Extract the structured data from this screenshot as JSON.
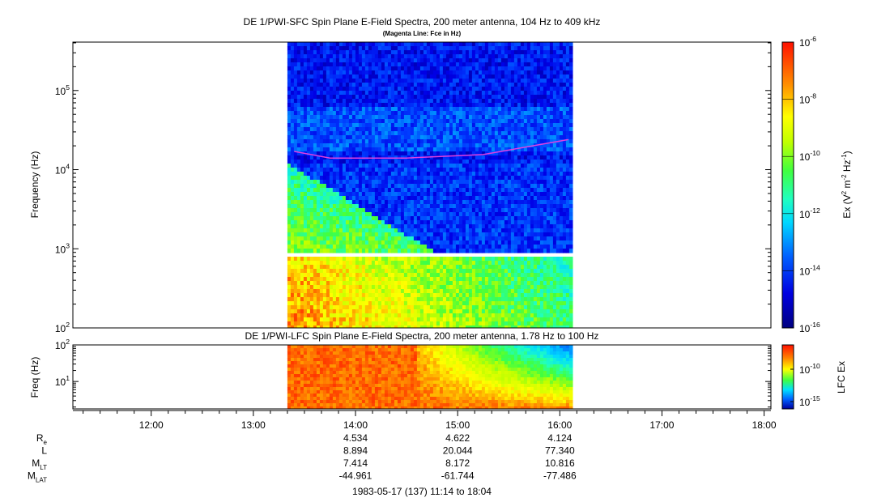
{
  "chart_data": [
    {
      "type": "heatmap",
      "title": "DE 1/PWI-SFC  Spin Plane E-Field Spectra, 200 meter antenna, 104 Hz to 409 kHz",
      "subtitle": "(Magenta Line: Fce in Hz)",
      "ylabel": "Frequency (Hz)",
      "yscale": "log",
      "ylim": [
        100,
        409000
      ],
      "y_ticks": [
        {
          "value": 100,
          "base": "10",
          "exp": "2"
        },
        {
          "value": 1000,
          "base": "10",
          "exp": "3"
        },
        {
          "value": 10000,
          "base": "10",
          "exp": "4"
        },
        {
          "value": 100000,
          "base": "10",
          "exp": "5"
        }
      ],
      "data_time_range": [
        "13:20",
        "16:07"
      ],
      "colorbar": {
        "label_main": "Ex (V",
        "label_sup1": "2",
        "label_mid": " m",
        "label_sup2": "-2",
        "label_mid2": " Hz",
        "label_sup3": "-1",
        "label_end": ")",
        "scale": "log",
        "range": [
          1e-16,
          1e-06
        ],
        "ticks": [
          {
            "base": "10",
            "exp": "-6"
          },
          {
            "base": "10",
            "exp": "-8"
          },
          {
            "base": "10",
            "exp": "-10"
          },
          {
            "base": "10",
            "exp": "-12"
          },
          {
            "base": "10",
            "exp": "-14"
          },
          {
            "base": "10",
            "exp": "-16"
          }
        ]
      },
      "fce_line": {
        "color": "#e040e0",
        "points": [
          [
            "13:24",
            17000
          ],
          [
            "13:45",
            14000
          ],
          [
            "14:30",
            14000
          ],
          [
            "15:15",
            15500
          ],
          [
            "16:05",
            24000
          ]
        ]
      }
    },
    {
      "type": "heatmap",
      "title": "DE 1/PWI-LFC  Spin Plane E-Field Spectra, 200 meter antenna, 1.78 Hz to 100 Hz",
      "ylabel": "Freq (Hz)",
      "yscale": "log",
      "ylim": [
        1.78,
        100
      ],
      "y_ticks": [
        {
          "value": 10,
          "base": "10",
          "exp": "1"
        },
        {
          "value": 100,
          "base": "10",
          "exp": "2"
        }
      ],
      "data_time_range": [
        "13:20",
        "16:07"
      ],
      "colorbar": {
        "label": "LFC Ex",
        "ticks": [
          {
            "base": "10",
            "exp": "-10"
          },
          {
            "base": "10",
            "exp": "-15"
          }
        ]
      }
    }
  ],
  "x_axis": {
    "ticks": [
      "12:00",
      "13:00",
      "14:00",
      "15:00",
      "16:00",
      "17:00",
      "18:00"
    ],
    "range": [
      "11:14",
      "18:04"
    ]
  },
  "ephemeris": {
    "rows": [
      {
        "name": "R",
        "sub": "e",
        "values": [
          "4.534",
          "4.622",
          "4.124"
        ]
      },
      {
        "name": "L",
        "sub": "",
        "values": [
          "8.894",
          "20.044",
          "77.340"
        ]
      },
      {
        "name": "M",
        "sub": "LT",
        "values": [
          "7.414",
          "8.172",
          "10.816"
        ]
      },
      {
        "name": "M",
        "sub": "LAT",
        "values": [
          "-44.961",
          "-61.744",
          "-77.486"
        ]
      }
    ],
    "at_times": [
      "14:00",
      "15:00",
      "16:00"
    ]
  },
  "footer": "1983-05-17 (137) 11:14 to 18:04"
}
